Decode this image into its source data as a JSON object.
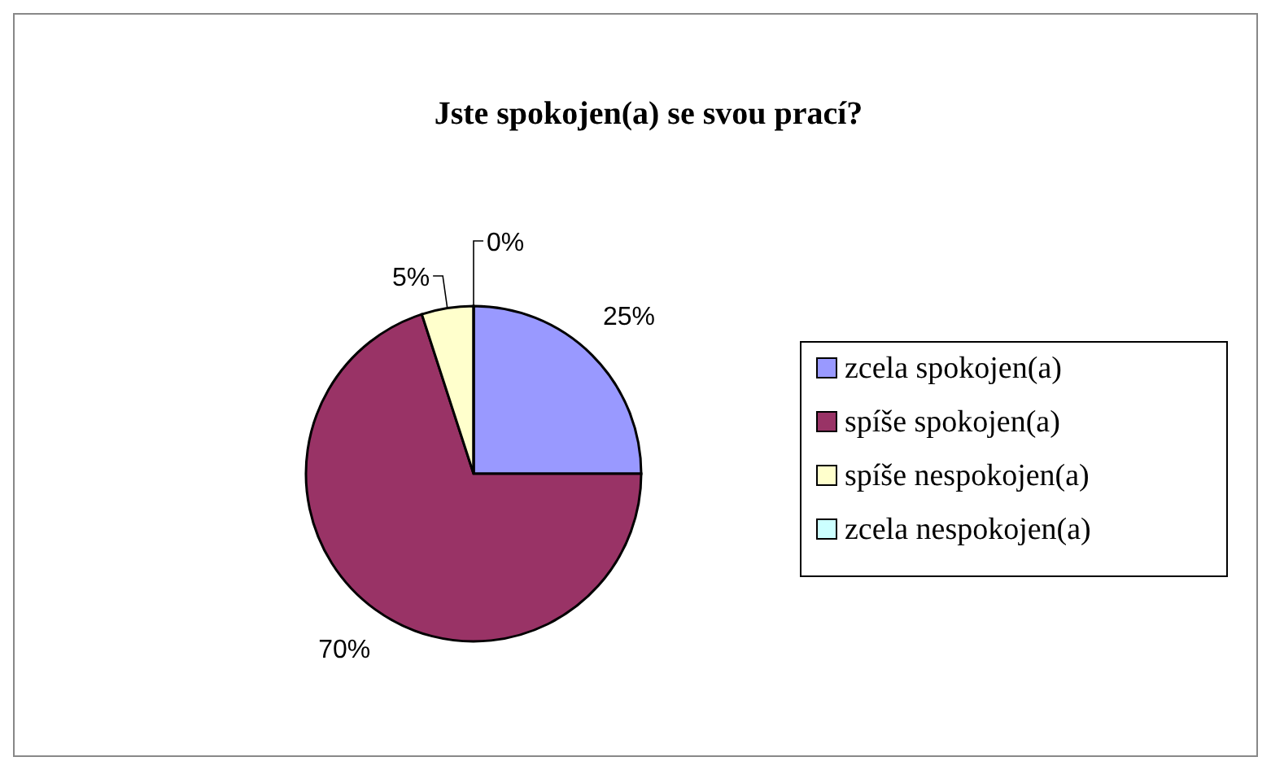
{
  "chart_data": {
    "type": "pie",
    "title": "Jste spokojen(a) se svou prací?",
    "categories": [
      "zcela spokojen(a)",
      "spíše spokojen(a)",
      "spíše nespokojen(a)",
      "zcela nespokojen(a)"
    ],
    "values": [
      25,
      70,
      5,
      0
    ],
    "colors": [
      "#9999ff",
      "#993366",
      "#ffffcc",
      "#ccffff"
    ],
    "value_labels": [
      "25%",
      "70%",
      "5%",
      "0%"
    ],
    "legend": "right"
  }
}
